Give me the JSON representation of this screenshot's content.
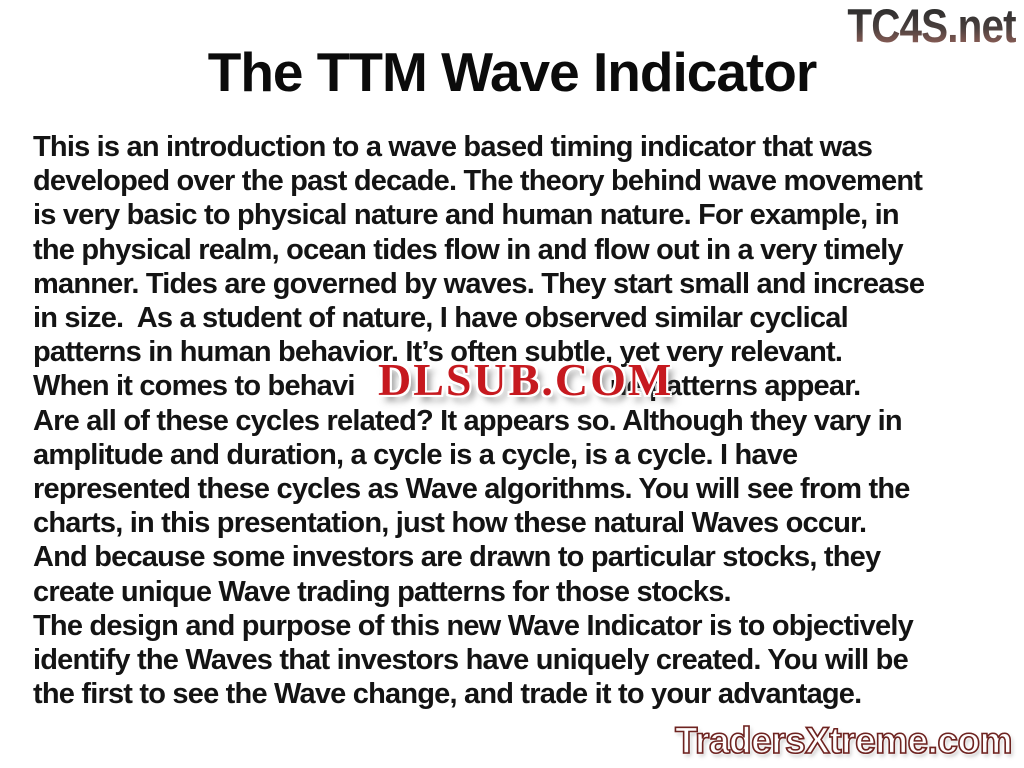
{
  "slide": {
    "title": "The TTM Wave Indicator"
  },
  "watermarks": {
    "top_right": "TC4S.net",
    "center": "DLSUB.COM",
    "bottom_right": "TradersXtreme.com"
  },
  "body": {
    "lines": [
      "This is an introduction to a wave based timing indicator that was",
      "developed over the past decade. The theory behind wave movement",
      "is very basic to physical nature and human nature. For example, in",
      "the physical realm, ocean tides flow in and flow out in a very timely",
      "manner. Tides are governed by waves. They start small and increase",
      "in size.  As a student of nature, I have observed similar cyclical",
      "patterns in human behavior. It’s often subtle, yet very relevant."
    ],
    "split_line": {
      "prefix": "When it comes to behavi",
      "suffix": "ne patterns appear."
    },
    "lines2": [
      "Are all of these cycles related? It appears so. Although they vary in",
      "amplitude and duration, a cycle is a cycle, is a cycle. I have",
      "represented these cycles as Wave algorithms. You will see from the",
      "charts, in this presentation, just how these natural Waves occur.",
      "And because some investors are drawn to particular stocks, they",
      "create unique Wave trading patterns for those stocks.",
      "The design and purpose of this new Wave Indicator is to objectively",
      "identify the Waves that investors have uniquely created. You will be",
      "the first to see the Wave change, and trade it to your advantage."
    ]
  },
  "colors": {
    "dlsub_red": "#c6191f",
    "tc4s_top": "#2e2e2e",
    "tc4s_mid": "#4a403e",
    "tc4s_bottom": "#9c655c",
    "tx_light": "#f5b3a9",
    "tx_mid": "#e07a72",
    "tx_dark": "#b8403e",
    "tx_outline": "#6d2320"
  }
}
